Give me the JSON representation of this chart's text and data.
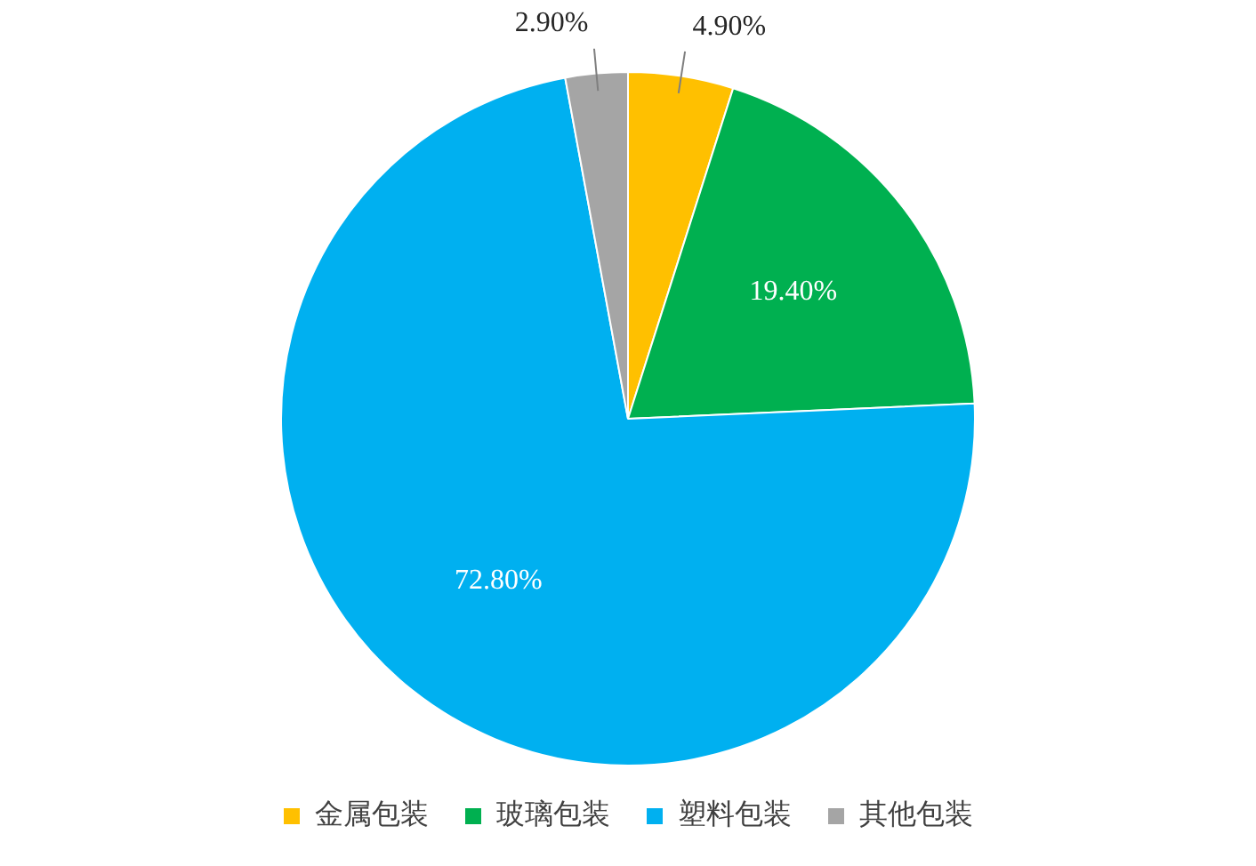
{
  "chart_data": {
    "type": "pie",
    "categories": [
      "金属包装",
      "玻璃包装",
      "塑料包装",
      "其他包装"
    ],
    "values": [
      4.9,
      19.4,
      72.8,
      2.9
    ],
    "colors": [
      "#ffc000",
      "#00b050",
      "#00b0f0",
      "#a5a5a5"
    ],
    "value_labels": [
      "4.90%",
      "19.40%",
      "72.80%",
      "2.90%"
    ],
    "legend": "bottom"
  }
}
